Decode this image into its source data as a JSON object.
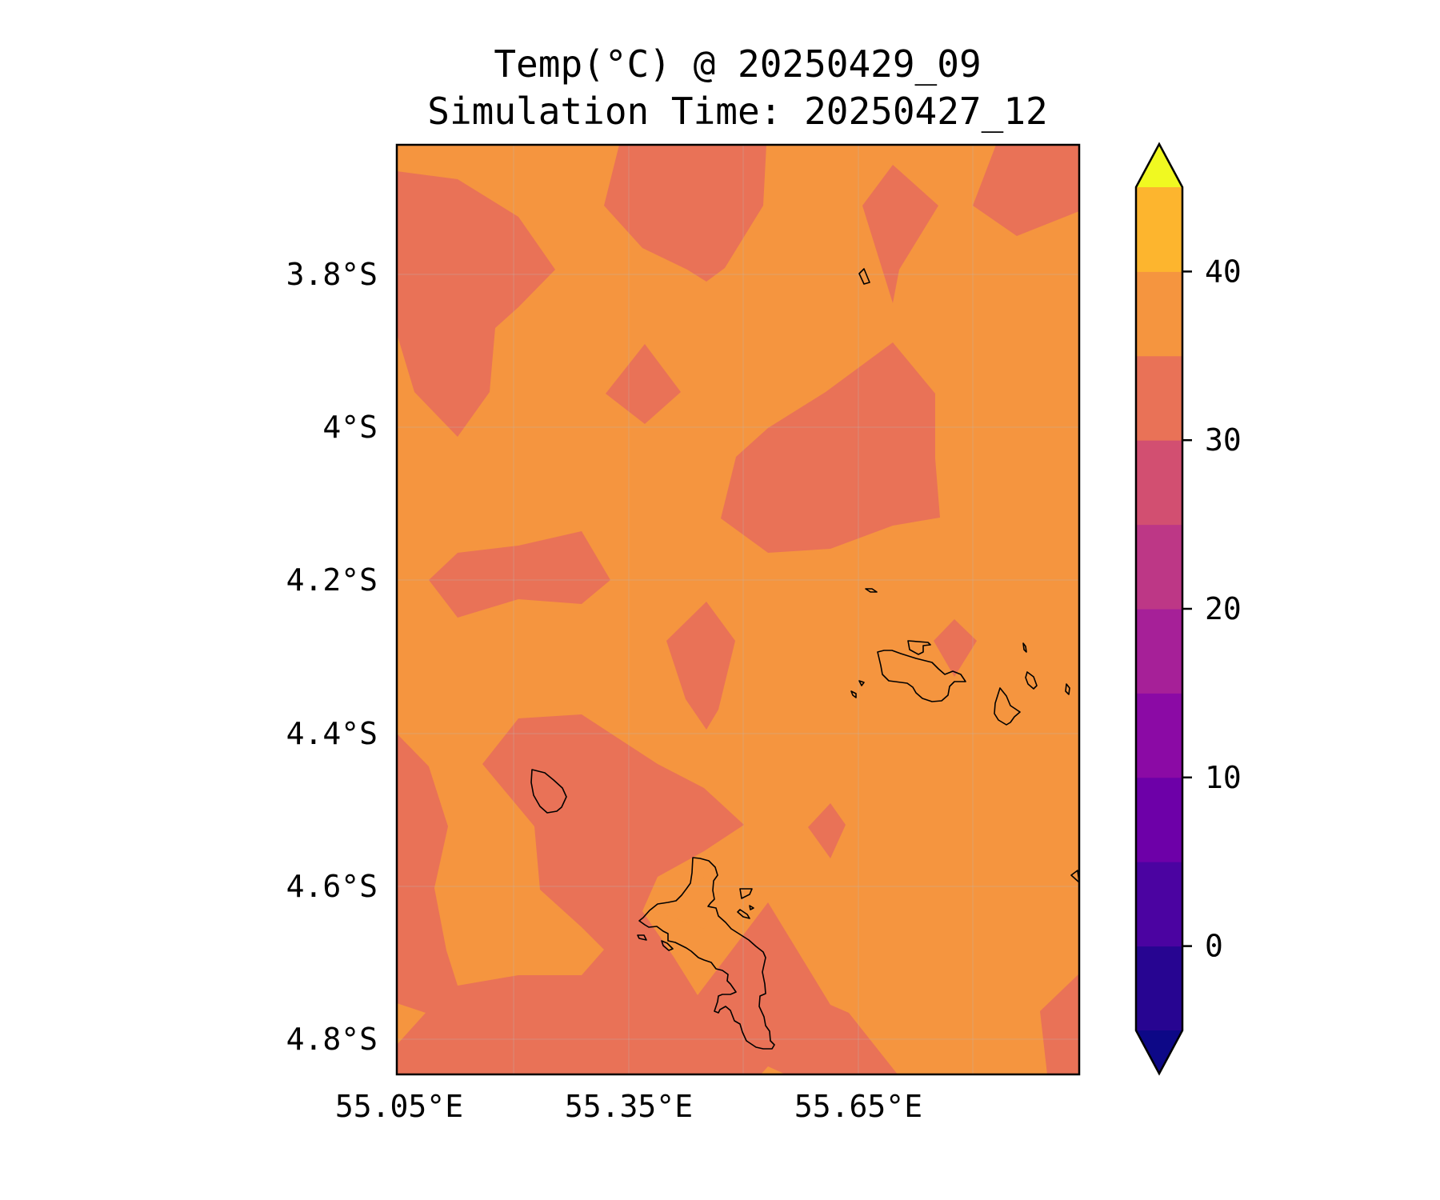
{
  "title": {
    "line1": "Temp(°C) @ 20250429_09",
    "line2": "Simulation Time: 20250427_12"
  },
  "colors": {
    "background_band": "#f5953f",
    "cool_band": "#e97257"
  },
  "map": {
    "lon_ticks": [
      {
        "value": 55.05,
        "label": "55.05°E"
      },
      {
        "value": 55.35,
        "label": "55.35°E"
      },
      {
        "value": 55.65,
        "label": "55.65°E"
      }
    ],
    "lat_ticks": [
      {
        "value": -3.8,
        "label": "3.8°S"
      },
      {
        "value": -4.0,
        "label": "4°S"
      },
      {
        "value": -4.2,
        "label": "4.2°S"
      },
      {
        "value": -4.4,
        "label": "4.4°S"
      },
      {
        "value": -4.6,
        "label": "4.6°S"
      },
      {
        "value": -4.8,
        "label": "4.8°S"
      }
    ]
  },
  "colorbar": {
    "levels": [
      -5,
      0,
      5,
      10,
      15,
      20,
      25,
      30,
      35,
      40,
      45
    ],
    "colors": [
      "#270591",
      "#4b03a1",
      "#6d00a8",
      "#8b0aa5",
      "#a62098",
      "#bd3786",
      "#d24f71",
      "#e97257",
      "#f5953f",
      "#fdb52e",
      "#f2e626"
    ],
    "extend_min_color": "#0d0887",
    "extend_max_color": "#f0f921",
    "ticks": [
      {
        "value": 0,
        "label": "0"
      },
      {
        "value": 10,
        "label": "10"
      },
      {
        "value": 20,
        "label": "20"
      },
      {
        "value": 30,
        "label": "30"
      },
      {
        "value": 40,
        "label": "40"
      }
    ]
  }
}
